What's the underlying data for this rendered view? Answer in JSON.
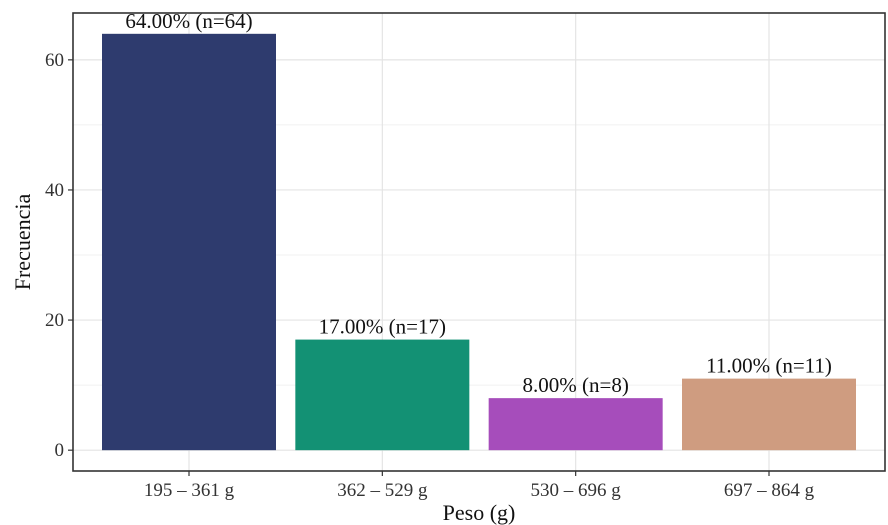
{
  "chart_data": {
    "type": "bar",
    "xlabel": "Peso (g)",
    "ylabel": "Frecuencia",
    "categories": [
      "195 – 361 g",
      "362 – 529 g",
      "530 – 696 g",
      "697 – 864 g"
    ],
    "values": [
      64,
      17,
      8,
      11
    ],
    "data_labels": [
      "64.00% (n=64)",
      "17.00% (n=17)",
      "8.00% (n=8)",
      "11.00% (n=11)"
    ],
    "colors": [
      "#2e3b6e",
      "#139174",
      "#a64dbb",
      "#cf9c80"
    ],
    "ylim": [
      -3.2,
      67.2
    ],
    "yticks": [
      0,
      20,
      40,
      60
    ],
    "grid": true,
    "legend": "none"
  }
}
